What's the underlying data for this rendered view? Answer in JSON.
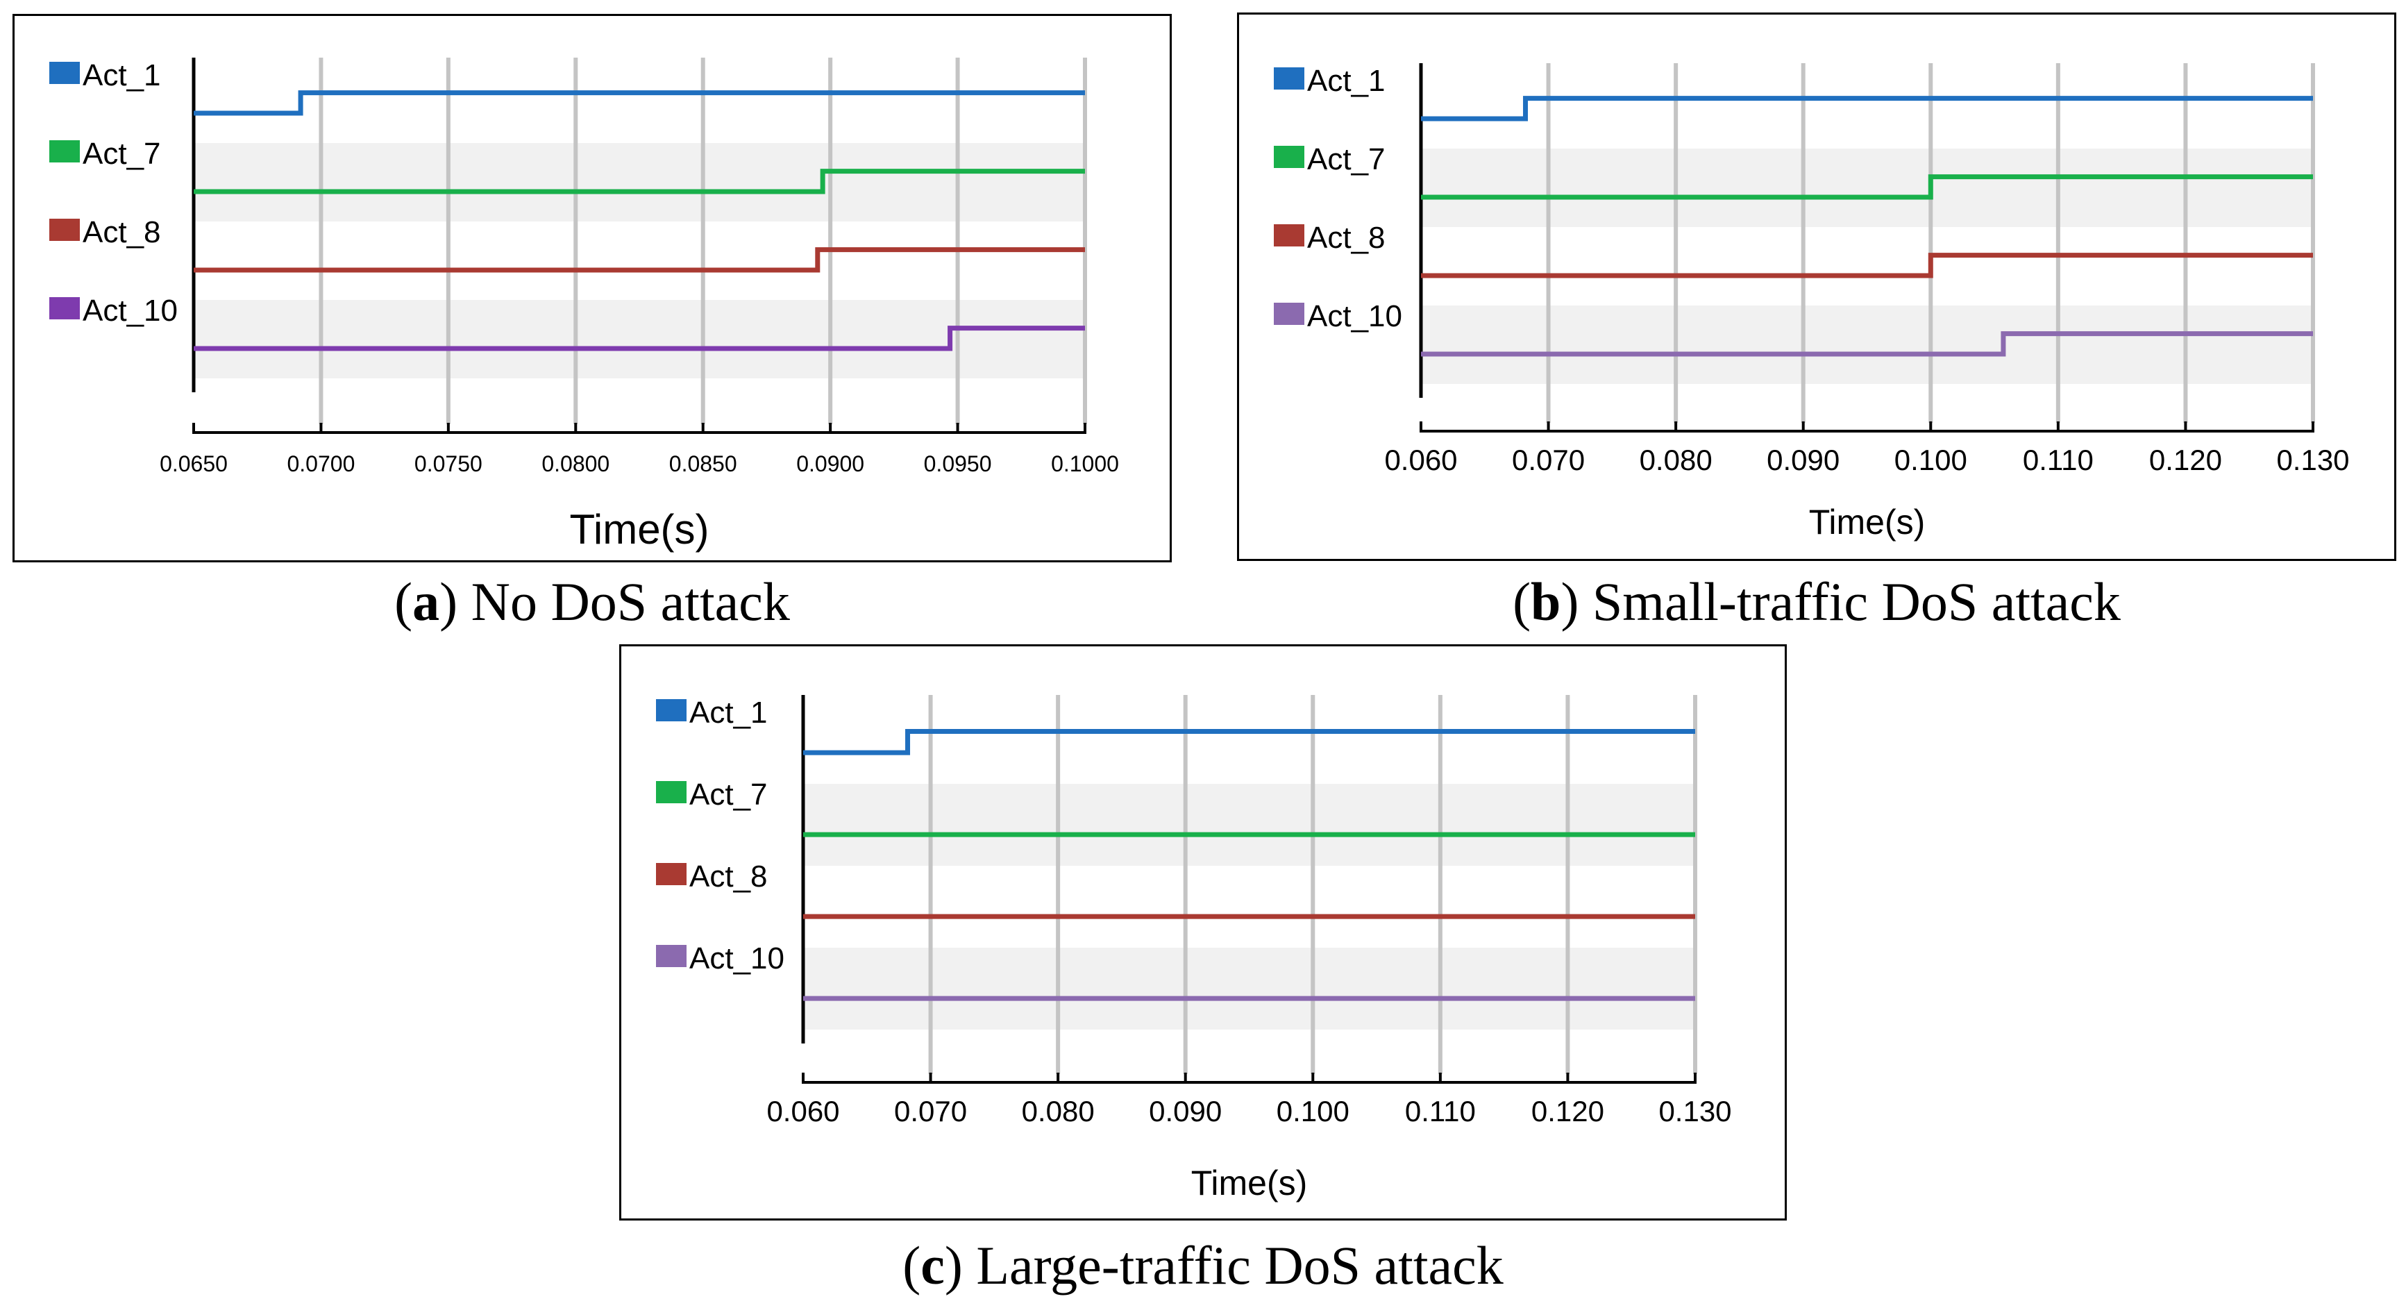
{
  "chart_data": [
    {
      "id": "a",
      "type": "line",
      "subtype": "step",
      "xlabel": "Time(s)",
      "xlim": [
        0.065,
        0.1
      ],
      "xticks": [
        0.065,
        0.07,
        0.075,
        0.08,
        0.085,
        0.09,
        0.095,
        0.1
      ],
      "xtick_labels": [
        "0.0650",
        "0.0700",
        "0.0750",
        "0.0800",
        "0.0850",
        "0.0900",
        "0.0950",
        "0.1000"
      ],
      "series": [
        {
          "name": "Act_1",
          "color": "#1f6fbf",
          "switch_at": 0.0692
        },
        {
          "name": "Act_7",
          "color": "#19b04b",
          "switch_at": 0.0897
        },
        {
          "name": "Act_8",
          "color": "#a93a32",
          "switch_at": 0.0895
        },
        {
          "name": "Act_10",
          "color": "#7e3bae",
          "switch_at": 0.0947
        }
      ]
    },
    {
      "id": "b",
      "type": "line",
      "subtype": "step",
      "xlabel": "Time(s)",
      "xlim": [
        0.06,
        0.13
      ],
      "xticks": [
        0.06,
        0.07,
        0.08,
        0.09,
        0.1,
        0.11,
        0.12,
        0.13
      ],
      "xtick_labels": [
        "0.060",
        "0.070",
        "0.080",
        "0.090",
        "0.100",
        "0.110",
        "0.120",
        "0.130"
      ],
      "series": [
        {
          "name": "Act_1",
          "color": "#1f6fbf",
          "switch_at": 0.0682
        },
        {
          "name": "Act_7",
          "color": "#19b04b",
          "switch_at": 0.1
        },
        {
          "name": "Act_8",
          "color": "#a93a32",
          "switch_at": 0.1
        },
        {
          "name": "Act_10",
          "color": "#8b6aaf",
          "switch_at": 0.1057
        }
      ]
    },
    {
      "id": "c",
      "type": "line",
      "subtype": "step",
      "xlabel": "Time(s)",
      "xlim": [
        0.06,
        0.13
      ],
      "xticks": [
        0.06,
        0.07,
        0.08,
        0.09,
        0.1,
        0.11,
        0.12,
        0.13
      ],
      "xtick_labels": [
        "0.060",
        "0.070",
        "0.080",
        "0.090",
        "0.100",
        "0.110",
        "0.120",
        "0.130"
      ],
      "series": [
        {
          "name": "Act_1",
          "color": "#1f6fbf",
          "switch_at": 0.0682
        },
        {
          "name": "Act_7",
          "color": "#19b04b",
          "switch_at": null
        },
        {
          "name": "Act_8",
          "color": "#a93a32",
          "switch_at": null
        },
        {
          "name": "Act_10",
          "color": "#8b6aaf",
          "switch_at": null
        }
      ]
    }
  ],
  "captions": {
    "a": {
      "letter": "a",
      "text": " No DoS attack"
    },
    "b": {
      "letter": "b",
      "text": " Small-traffic DoS attack"
    },
    "c": {
      "letter": "c",
      "text": " Large-traffic DoS attack"
    }
  }
}
